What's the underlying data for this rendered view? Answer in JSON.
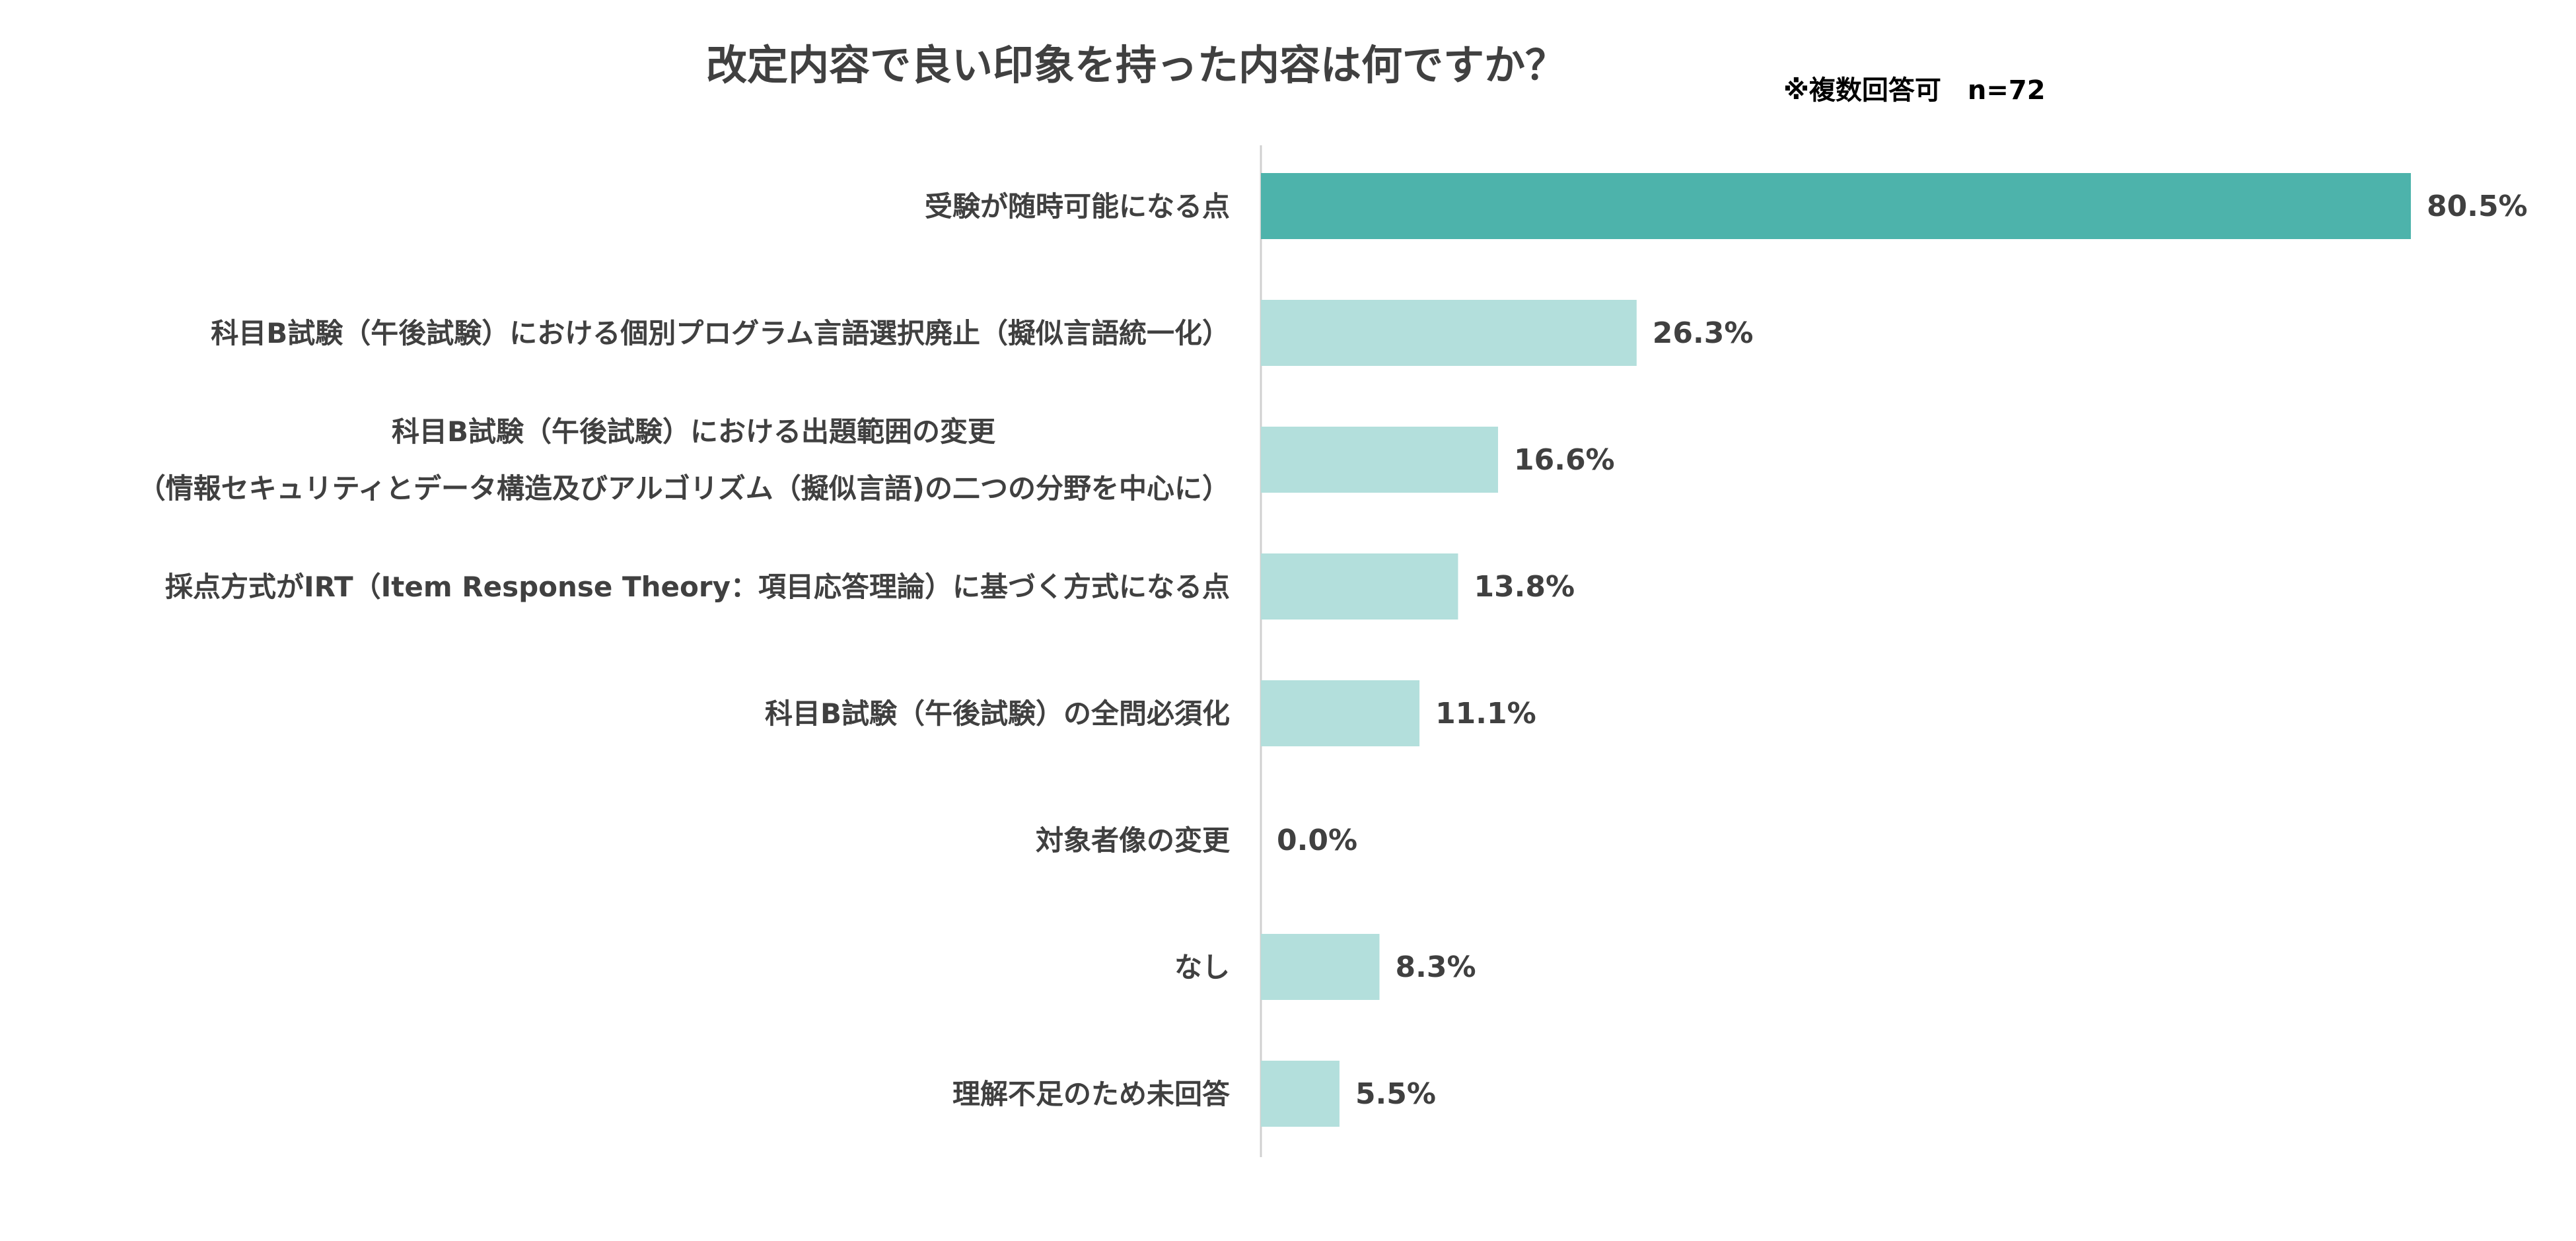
{
  "chart": {
    "title": "改定内容で良い印象を持った内容は何ですか？",
    "note": "※複数回答可　n=72"
  },
  "colors": {
    "highlight": "#4db3ab",
    "normal": "#b3dfdc",
    "axis": "#d0d0d0",
    "text": "#404040"
  },
  "chart_data": {
    "type": "bar",
    "orientation": "horizontal",
    "title": "改定内容で良い印象を持った内容は何ですか？",
    "subtitle": "※複数回答可　n=72",
    "categories": [
      [
        "受験が随時可能になる点"
      ],
      [
        "科目B試験（午後試験）における個別プログラム言語選択廃止（擬似言語統一化）"
      ],
      [
        "科目B試験（午後試験）における出題範囲の変更",
        "（情報セキュリティとデータ構造及びアルゴリズム（擬似言語)の二つの分野を中心に）"
      ],
      [
        "採点方式がIRT（Item Response Theory：項目応答理論）に基づく方式になる点"
      ],
      [
        "科目B試験（午後試験）の全問必須化"
      ],
      [
        "対象者像の変更"
      ],
      [
        "なし"
      ],
      [
        "理解不足のため未回答"
      ]
    ],
    "values": [
      80.5,
      26.3,
      16.6,
      13.8,
      11.1,
      0.0,
      8.3,
      5.5
    ],
    "value_labels": [
      "80.5%",
      "26.3%",
      "16.6%",
      "13.8%",
      "11.1%",
      "0.0%",
      "8.3%",
      "5.5%"
    ],
    "highlight_index": 0,
    "xlim": [
      0,
      80.5
    ],
    "grid": false,
    "legend": "none"
  }
}
